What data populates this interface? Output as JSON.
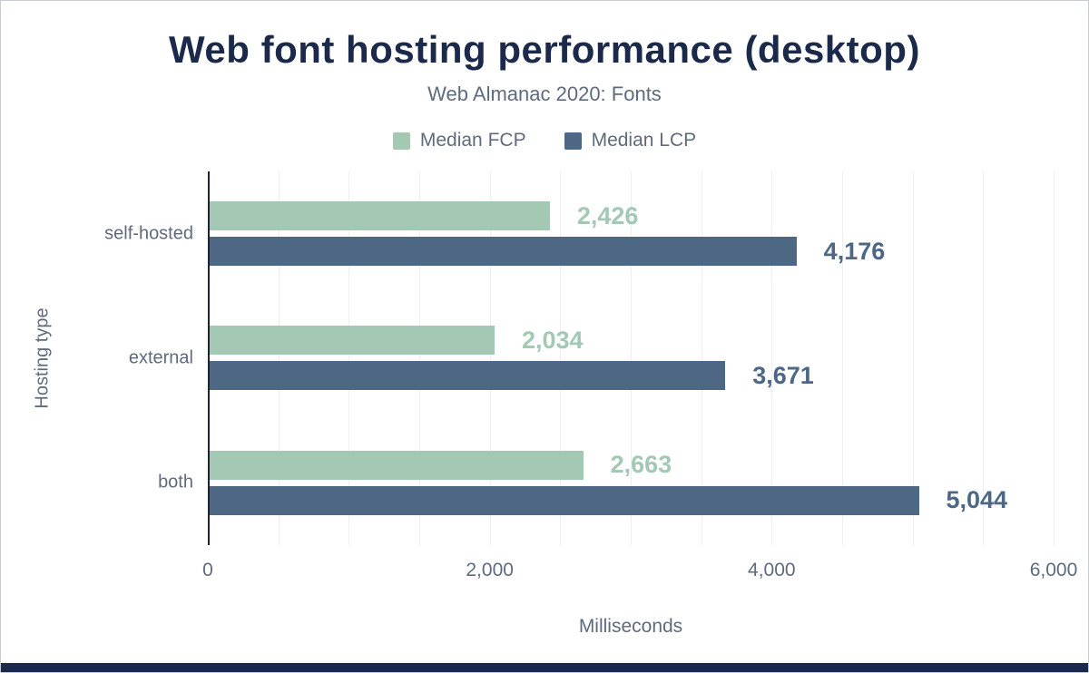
{
  "theme": {
    "navy": "#1b2a4a",
    "text_gray": "#5f6b7c",
    "fcp_green": "#a3c9b5",
    "lcp_slate": "#4d6785"
  },
  "chart_data": {
    "type": "bar",
    "orientation": "horizontal",
    "title": "Web font hosting performance (desktop)",
    "subtitle": "Web Almanac 2020: Fonts",
    "categories": [
      "self-hosted",
      "external",
      "both"
    ],
    "series": [
      {
        "name": "Median FCP",
        "color": "#a3c9b5",
        "values": [
          2426,
          2034,
          2663
        ]
      },
      {
        "name": "Median LCP",
        "color": "#4d6785",
        "values": [
          4176,
          3671,
          5044
        ]
      }
    ],
    "xlabel": "Milliseconds",
    "ylabel": "Hosting type",
    "xlim": [
      0,
      6000
    ],
    "xticks": [
      0,
      2000,
      4000,
      6000
    ],
    "minor_grid_step": 500,
    "grid": true,
    "legend_position": "top"
  }
}
